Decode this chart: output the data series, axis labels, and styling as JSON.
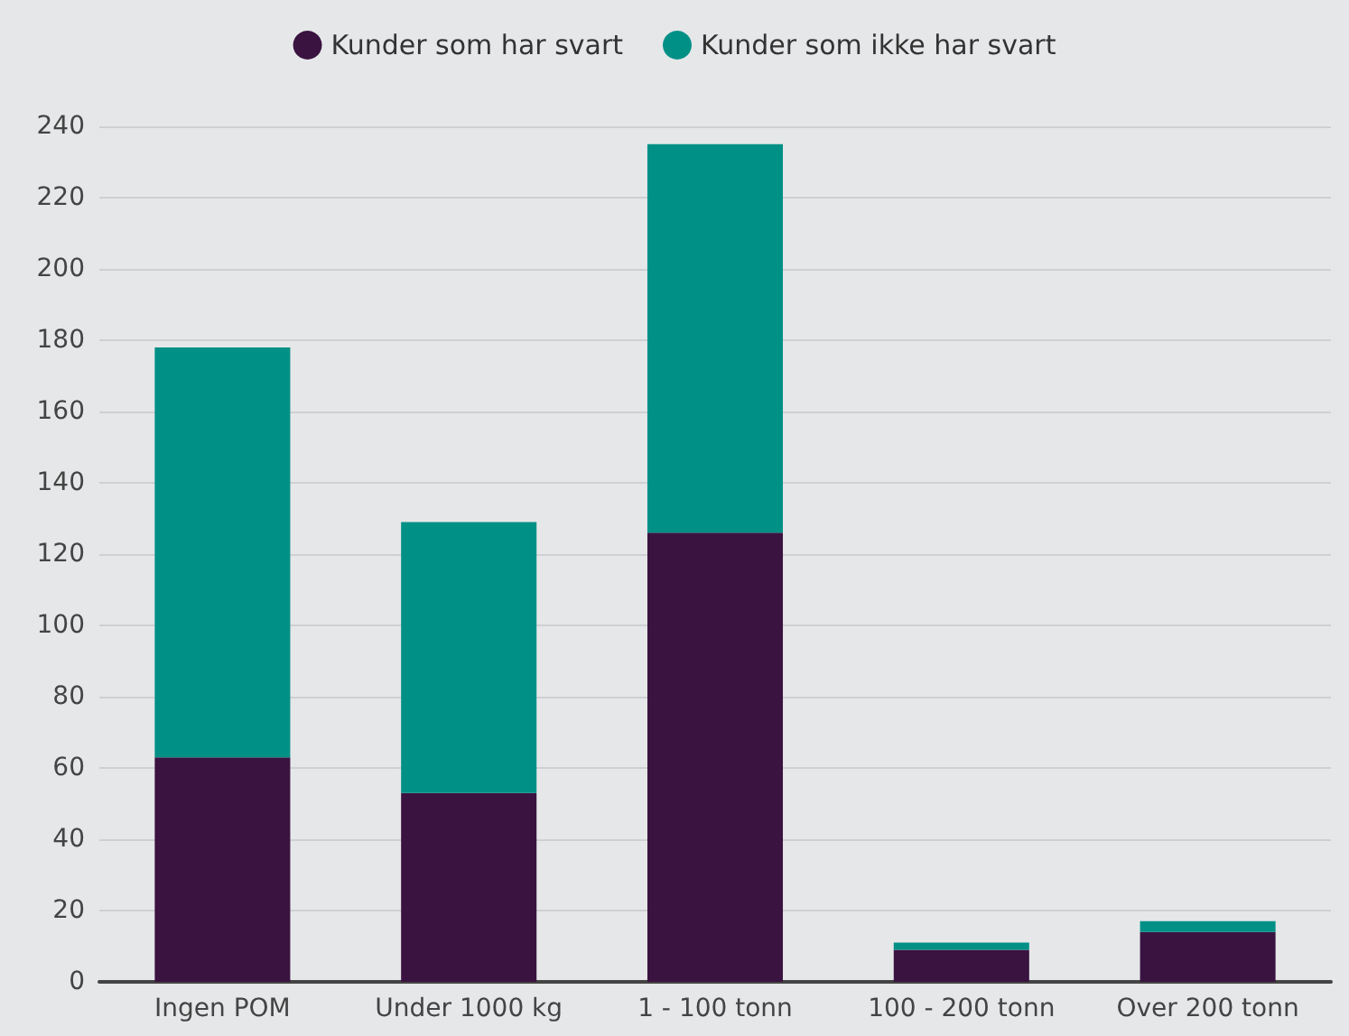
{
  "chart_data": {
    "type": "bar",
    "stacked": true,
    "categories": [
      "Ingen POM",
      "Under 1000 kg",
      "1 - 100 tonn",
      "100 - 200 tonn",
      "Over 200 tonn"
    ],
    "series": [
      {
        "name": "Kunder som har svart",
        "color": "#3a1340",
        "values": [
          63,
          53,
          126,
          9,
          14
        ]
      },
      {
        "name": "Kunder som ikke har svart",
        "color": "#009086",
        "values": [
          115,
          76,
          109,
          2,
          3
        ]
      }
    ],
    "ylim": [
      0,
      240
    ],
    "yticks": [
      0,
      20,
      40,
      60,
      80,
      100,
      120,
      140,
      160,
      180,
      200,
      220,
      240
    ],
    "grid": "y",
    "legend": "top"
  }
}
